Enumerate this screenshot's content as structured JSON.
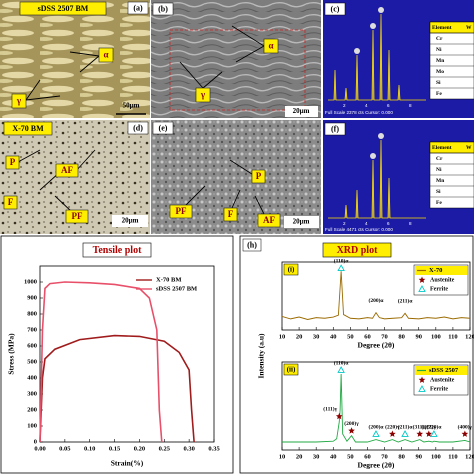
{
  "panels": {
    "a": {
      "label": "(a)",
      "title": "sDSS 2507 BM",
      "annotations": [
        "α",
        "γ"
      ],
      "scale": "50µm"
    },
    "b": {
      "label": "(b)",
      "annotations": [
        "α",
        "γ"
      ],
      "scale": "20µm"
    },
    "c": {
      "label": "(c)",
      "header": [
        "Element",
        "W"
      ],
      "elements": [
        "Cr",
        "Ni",
        "Mn",
        "Mo",
        "Si",
        "Fe"
      ],
      "ticks": [
        "2",
        "4",
        "6",
        "8"
      ],
      "footer": "Full Scale 2378 cts Cursor: 0.000"
    },
    "d": {
      "label": "(d)",
      "title": "X-70 BM",
      "annotations": [
        "P",
        "AF",
        "F",
        "PF"
      ],
      "scale": "20µm"
    },
    "e": {
      "label": "(e)",
      "annotations": [
        "P",
        "PF",
        "AF",
        "F"
      ],
      "scale": "20µm"
    },
    "f": {
      "label": "(f)",
      "header": [
        "Element",
        "W"
      ],
      "elements": [
        "Cr",
        "Ni",
        "Mn",
        "Si",
        "Fe"
      ],
      "ticks": [
        "2",
        "4",
        "6",
        "8"
      ],
      "footer": "Full Scale 4471 cts Cursor: 0.000"
    }
  },
  "chart_data": [
    {
      "type": "line",
      "title": "Tensile plot",
      "xlabel": "Strain(%)",
      "ylabel": "Stress (MPa)",
      "xlim": [
        0,
        0.35
      ],
      "ylim": [
        0,
        1100
      ],
      "xticks": [
        {
          "value": 0,
          "label": "0.00"
        },
        {
          "value": 0.05,
          "label": "0.05"
        },
        {
          "value": 0.1,
          "label": "0.10"
        },
        {
          "value": 0.15,
          "label": "0.15"
        },
        {
          "value": 0.2,
          "label": "0.20"
        },
        {
          "value": 0.25,
          "label": "0.25"
        },
        {
          "value": 0.3,
          "label": "0.30"
        },
        {
          "value": 0.35,
          "label": "0.35"
        }
      ],
      "yticks": [
        0,
        100,
        200,
        300,
        400,
        500,
        600,
        700,
        800,
        900,
        1000
      ],
      "series": [
        {
          "name": "X-70 BM",
          "color": "#a01c1c",
          "x": [
            0,
            0.005,
            0.01,
            0.03,
            0.08,
            0.15,
            0.2,
            0.25,
            0.28,
            0.3,
            0.305,
            0.31
          ],
          "values": [
            0,
            400,
            520,
            580,
            640,
            665,
            660,
            630,
            560,
            450,
            200,
            0
          ]
        },
        {
          "name": "sDSS 2507 BM",
          "color": "#e8506a",
          "x": [
            0,
            0.005,
            0.01,
            0.02,
            0.05,
            0.1,
            0.15,
            0.2,
            0.22,
            0.235,
            0.24,
            0.245
          ],
          "values": [
            0,
            700,
            960,
            990,
            1000,
            995,
            985,
            960,
            900,
            700,
            200,
            0
          ]
        }
      ]
    },
    {
      "type": "line",
      "panel": "(h)",
      "title": "XRD plot",
      "subplot": "(i)",
      "xlabel": "Degree (2θ)",
      "ylabel": "Intensity (a.u)",
      "xlim": [
        10,
        120
      ],
      "ylim": [
        0,
        110
      ],
      "xticks": [
        10,
        20,
        30,
        40,
        50,
        60,
        70,
        80,
        90,
        100,
        110,
        120
      ],
      "x": [
        10,
        15,
        20,
        25,
        30,
        35,
        40,
        43,
        44.6,
        46,
        50,
        55,
        60,
        63,
        65,
        67,
        70,
        75,
        80,
        82,
        84,
        90,
        95,
        100,
        105,
        110,
        115,
        120
      ],
      "series": [
        {
          "name": "X-70",
          "color": "#9a6a00",
          "values": [
            22,
            18,
            21,
            17,
            20,
            19,
            21,
            24,
            95,
            25,
            19,
            18,
            20,
            19,
            28,
            20,
            18,
            19,
            20,
            27,
            19,
            18,
            20,
            19,
            21,
            18,
            20,
            19
          ]
        }
      ],
      "markers": [
        {
          "name": "Austenite",
          "color": "#8b0000"
        },
        {
          "name": "Ferrite",
          "color": "#00c8c8"
        }
      ],
      "peaks": [
        {
          "x": 44.6,
          "y": 100,
          "label": "(110)α",
          "phase": "Ferrite"
        },
        {
          "x": 65,
          "y": 36,
          "label": "(200)α"
        },
        {
          "x": 82,
          "y": 35,
          "label": "(211)α"
        }
      ]
    },
    {
      "type": "line",
      "subplot": "(ii)",
      "xlabel": "Degree (2θ)",
      "xlim": [
        10,
        120
      ],
      "ylim": [
        0,
        110
      ],
      "xticks": [
        10,
        20,
        30,
        40,
        50,
        60,
        70,
        80,
        90,
        100,
        110,
        120
      ],
      "x": [
        10,
        20,
        30,
        40,
        42,
        43.5,
        44,
        44.6,
        45.5,
        48,
        50.7,
        53,
        60,
        65,
        70,
        74.6,
        78,
        82,
        86,
        90.6,
        93,
        95.9,
        98,
        98.9,
        102,
        110,
        117,
        120
      ],
      "series": [
        {
          "name": "sDSS 2507",
          "color": "#22aa44",
          "values": [
            10,
            10,
            10,
            11,
            14,
            35,
            50,
            95,
            20,
            11,
            18,
            10,
            10,
            13,
            10,
            13,
            10,
            13,
            10,
            13,
            10,
            11,
            10,
            11,
            10,
            10,
            12,
            10
          ]
        }
      ],
      "markers": [
        {
          "name": "Austenite",
          "color": "#8b0000"
        },
        {
          "name": "Ferrite",
          "color": "#00c8c8"
        }
      ],
      "peaks": [
        {
          "x": 43.5,
          "y": 42,
          "label": "(111)γ",
          "phase": "Austenite"
        },
        {
          "x": 44.6,
          "y": 100,
          "label": "(110)α",
          "phase": "Ferrite"
        },
        {
          "x": 50.7,
          "y": 24,
          "label": "(200)γ",
          "phase": "Austenite"
        },
        {
          "x": 65,
          "y": 20,
          "label": "(200)α",
          "phase": "Ferrite"
        },
        {
          "x": 74.6,
          "y": 20,
          "label": "(220)γ",
          "phase": "Austenite"
        },
        {
          "x": 82,
          "y": 20,
          "label": "(211)α",
          "phase": "Ferrite"
        },
        {
          "x": 90.6,
          "y": 20,
          "label": "(311)γ",
          "phase": "Austenite"
        },
        {
          "x": 95.9,
          "y": 20,
          "label": "(222)γ",
          "phase": "Austenite"
        },
        {
          "x": 98.9,
          "y": 20,
          "label": "(220)α",
          "phase": "Ferrite"
        },
        {
          "x": 117,
          "y": 20,
          "label": "(400)γ",
          "phase": "Austenite"
        }
      ]
    }
  ]
}
